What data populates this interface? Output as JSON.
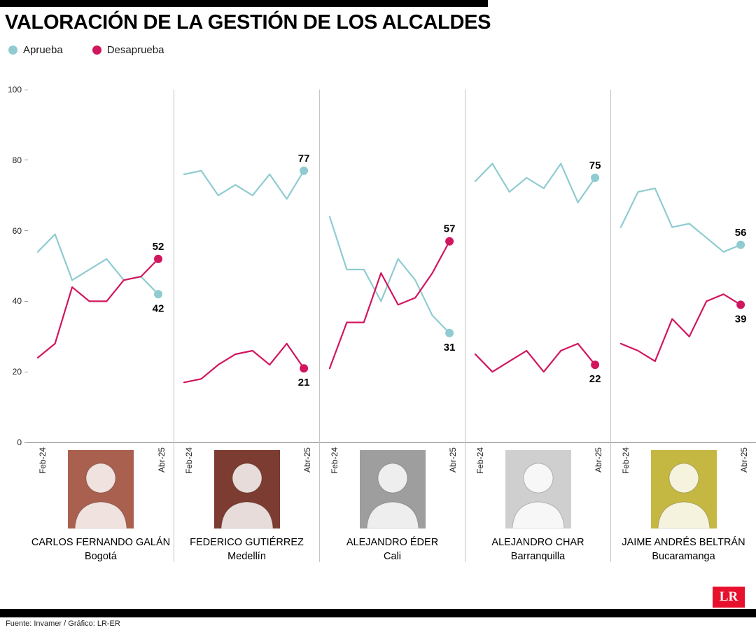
{
  "title": "VALORACIÓN DE LA GESTIÓN DE LOS ALCALDES",
  "legend": [
    {
      "label": "Aprueba",
      "color": "#8fcbd0"
    },
    {
      "label": "Desaprueba",
      "color": "#d1155e"
    }
  ],
  "footer": {
    "source": "Fuente: Invamer / Gráfico: LR-ER",
    "logo_text": "LR",
    "logo_color": "#e8112d"
  },
  "chart_data": {
    "type": "line",
    "x_ticks": [
      "Feb-24",
      "Abr-25"
    ],
    "y_ticks": [
      0,
      20,
      40,
      60,
      80,
      100
    ],
    "ylim": [
      0,
      100
    ],
    "grid": false,
    "legend_position": "top-left",
    "panels": [
      {
        "name": "CARLOS FERNANDO GALÁN",
        "city": "Bogotá",
        "photo_bg": "#a9604f",
        "series": {
          "aprueba": [
            54,
            59,
            46,
            49,
            52,
            46,
            47,
            42
          ],
          "desaprueba": [
            24,
            28,
            44,
            40,
            40,
            46,
            47,
            52
          ]
        },
        "end_labels": {
          "aprueba": "42",
          "desaprueba": "52"
        }
      },
      {
        "name": "FEDERICO GUTIÉRREZ",
        "city": "Medellín",
        "photo_bg": "#7d3c31",
        "series": {
          "aprueba": [
            76,
            77,
            70,
            73,
            70,
            76,
            69,
            77
          ],
          "desaprueba": [
            17,
            18,
            22,
            25,
            26,
            22,
            28,
            21
          ]
        },
        "end_labels": {
          "aprueba": "77",
          "desaprueba": "21"
        }
      },
      {
        "name": "ALEJANDRO ÉDER",
        "city": "Cali",
        "photo_bg": "#9e9e9e",
        "series": {
          "aprueba": [
            64,
            49,
            49,
            40,
            52,
            46,
            36,
            31
          ],
          "desaprueba": [
            21,
            34,
            34,
            48,
            39,
            41,
            48,
            57
          ]
        },
        "end_labels": {
          "aprueba": "31",
          "desaprueba": "57"
        }
      },
      {
        "name": "ALEJANDRO CHAR",
        "city": "Barranquilla",
        "photo_bg": "#cfcfcf",
        "series": {
          "aprueba": [
            74,
            79,
            71,
            75,
            72,
            79,
            68,
            75
          ],
          "desaprueba": [
            25,
            20,
            23,
            26,
            20,
            26,
            28,
            22
          ]
        },
        "end_labels": {
          "aprueba": "75",
          "desaprueba": "22"
        }
      },
      {
        "name": "JAIME ANDRÉS BELTRÁN",
        "city": "Bucaramanga",
        "photo_bg": "#c5b842",
        "series": {
          "aprueba": [
            61,
            71,
            72,
            61,
            62,
            58,
            54,
            56
          ],
          "desaprueba": [
            28,
            26,
            23,
            35,
            30,
            40,
            42,
            39
          ]
        },
        "end_labels": {
          "aprueba": "56",
          "desaprueba": "39"
        }
      }
    ]
  }
}
